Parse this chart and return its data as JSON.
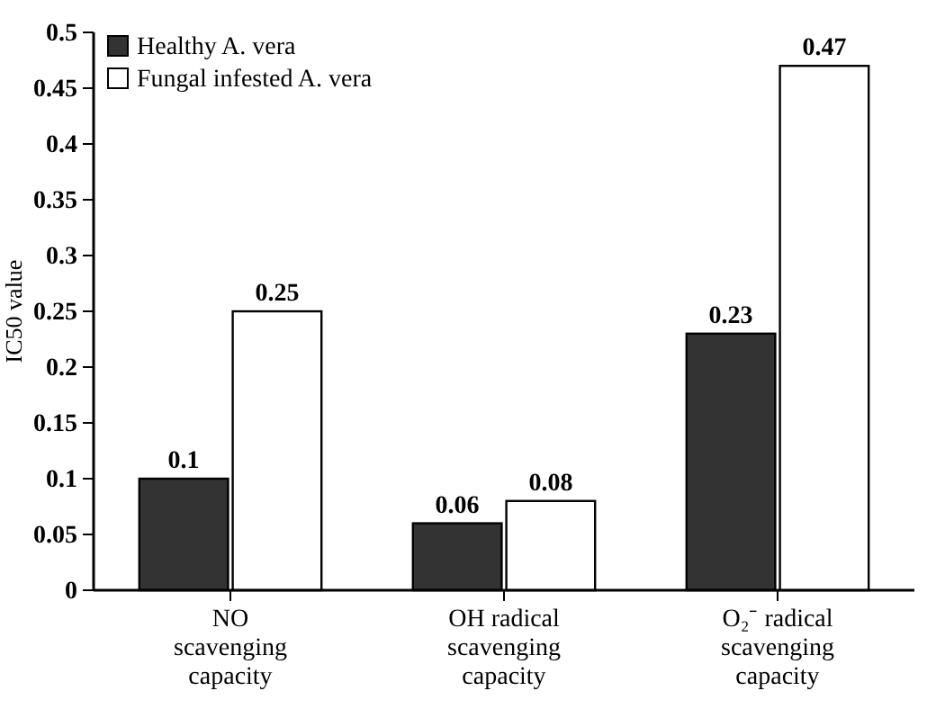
{
  "chart_data": {
    "type": "bar",
    "ylabel": "IC50 value",
    "categories": [
      "NO scavenging capacity",
      "OH radical scavenging capacity",
      "O₂⁻ radical scavenging capacity"
    ],
    "series": [
      {
        "name": "Healthy A. vera",
        "color": "#333333",
        "values": [
          0.1,
          0.06,
          0.23
        ]
      },
      {
        "name": "Fungal infested A. vera",
        "color": "#ffffff",
        "values": [
          0.25,
          0.08,
          0.47
        ]
      }
    ],
    "ylim": [
      0,
      0.5
    ],
    "yticks": [
      0,
      0.05,
      0.1,
      0.15,
      0.2,
      0.25,
      0.3,
      0.35,
      0.4,
      0.45,
      0.5
    ],
    "data_labels": true,
    "legend": "top left",
    "grid": false
  }
}
